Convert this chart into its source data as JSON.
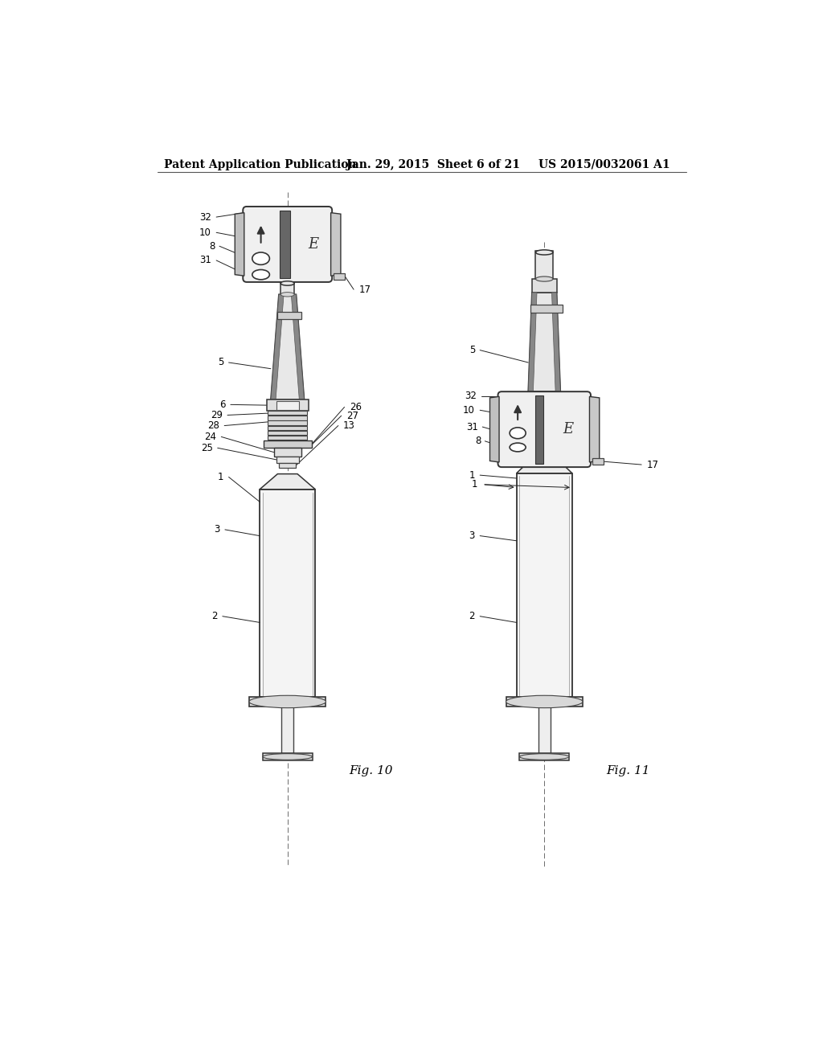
{
  "bg_color": "#ffffff",
  "header_left": "Patent Application Publication",
  "header_mid": "Jan. 29, 2015  Sheet 6 of 21",
  "header_right": "US 2015/0032061 A1",
  "fig10_label": "Fig. 10",
  "fig11_label": "Fig. 11"
}
